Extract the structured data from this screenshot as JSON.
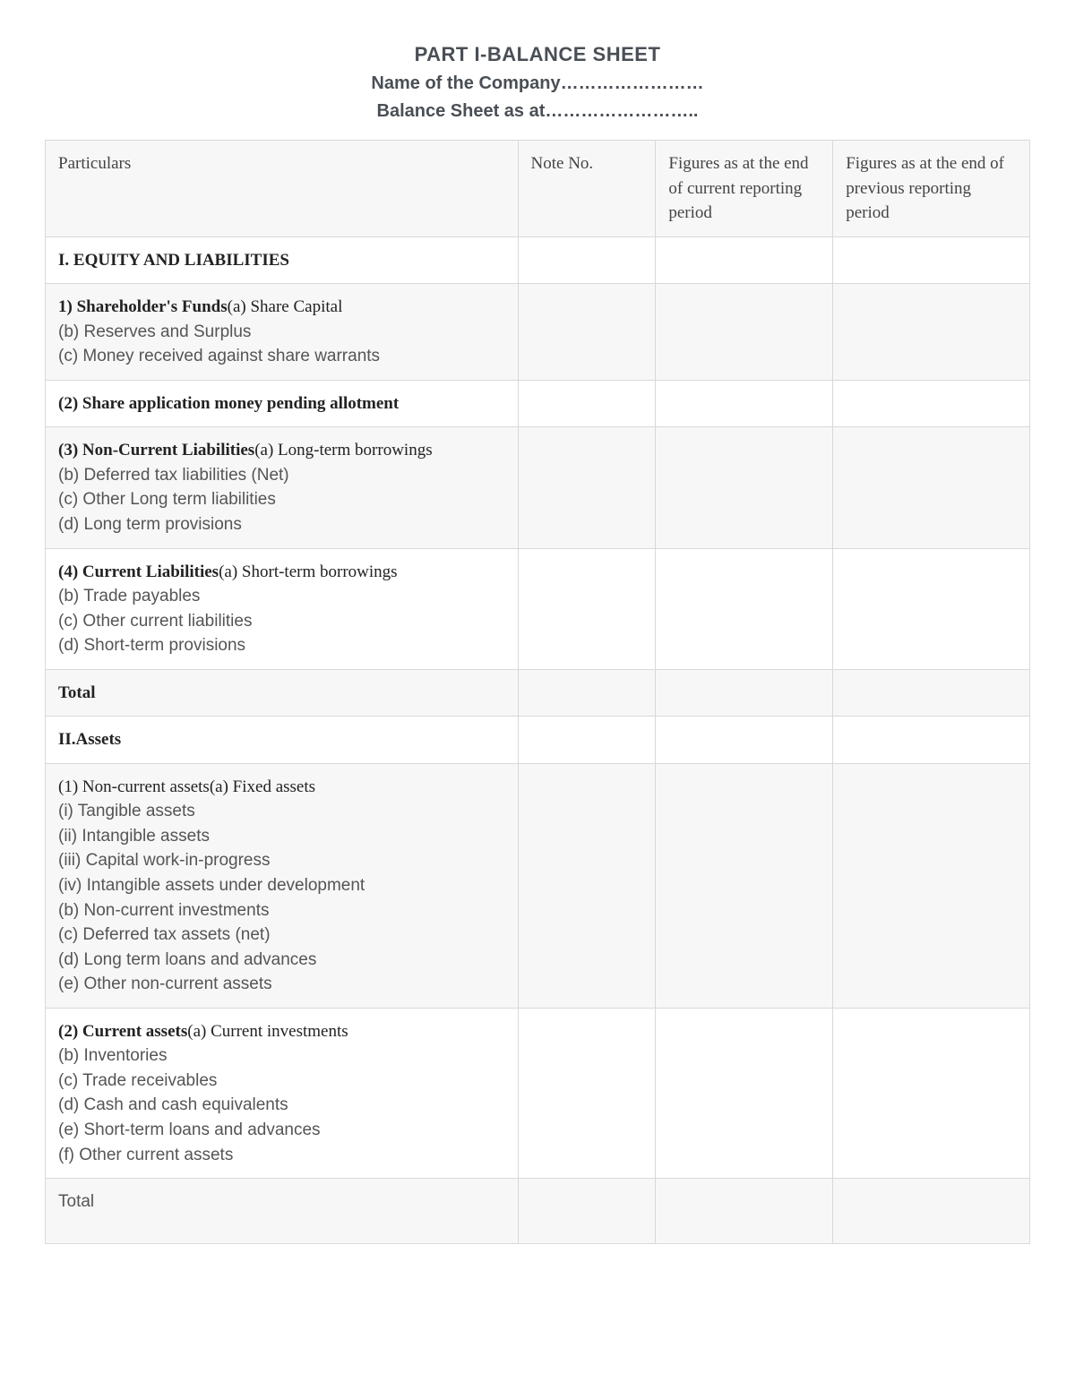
{
  "title": "PART I-BALANCE SHEET",
  "subtitle1": "Name of the Company……………………",
  "subtitle2": "Balance Sheet as at……………………..",
  "columns": {
    "col1": "Particulars",
    "col2": "Note No.",
    "col3": "Figures as at the end of current reporting period",
    "col4": "Figures as at the end of previous reporting period"
  },
  "rows": [
    {
      "shade": false,
      "lines": [
        {
          "text": "I. EQUITY AND LIABILITIES",
          "style": "serif bold"
        }
      ]
    },
    {
      "shade": true,
      "lines": [
        {
          "lead": "1) Shareholder's Funds",
          "leadStyle": "serif bold",
          "text": "(a) Share Capital",
          "style": "serif"
        },
        {
          "text": "(b) Reserves and Surplus",
          "style": "sans"
        },
        {
          "text": "(c) Money received against share warrants",
          "style": "sans"
        }
      ]
    },
    {
      "shade": false,
      "lines": [
        {
          "text": "(2) Share application money pending allotment",
          "style": "serif bold"
        }
      ]
    },
    {
      "shade": true,
      "lines": [
        {
          "lead": "(3) Non-Current Liabilities",
          "leadStyle": "serif bold",
          "text": "(a) Long-term borrowings",
          "style": "serif"
        },
        {
          "text": "(b) Deferred tax liabilities (Net)",
          "style": "sans"
        },
        {
          "text": "(c) Other Long term liabilities",
          "style": "sans"
        },
        {
          "text": "(d) Long term provisions",
          "style": "sans"
        }
      ]
    },
    {
      "shade": false,
      "lines": [
        {
          "lead": "(4) Current Liabilities",
          "leadStyle": "serif bold",
          "text": "(a) Short-term borrowings",
          "style": "serif"
        },
        {
          "text": "(b) Trade payables",
          "style": "sans"
        },
        {
          "text": "(c) Other current liabilities",
          "style": "sans"
        },
        {
          "text": "(d) Short-term provisions",
          "style": "sans"
        }
      ]
    },
    {
      "shade": true,
      "lines": [
        {
          "text": "Total",
          "style": "serif bold"
        }
      ]
    },
    {
      "shade": false,
      "lines": [
        {
          "text": "II.Assets",
          "style": "serif bold"
        }
      ]
    },
    {
      "shade": true,
      "lines": [
        {
          "text": "(1) Non-current assets(a) Fixed assets",
          "style": "serif"
        },
        {
          "text": "(i) Tangible assets",
          "style": "sans"
        },
        {
          "text": "(ii) Intangible assets",
          "style": "sans"
        },
        {
          "text": "(iii) Capital work-in-progress",
          "style": "sans"
        },
        {
          "text": "(iv) Intangible assets under development",
          "style": "sans"
        },
        {
          "text": "(b) Non-current investments",
          "style": "sans"
        },
        {
          "text": "(c) Deferred tax assets (net)",
          "style": "sans"
        },
        {
          "text": "(d) Long term loans and advances",
          "style": "sans"
        },
        {
          "text": "(e) Other non-current assets",
          "style": "sans"
        }
      ]
    },
    {
      "shade": false,
      "lines": [
        {
          "lead": "(2) Current assets",
          "leadStyle": "serif bold",
          "text": "(a) Current investments",
          "style": "serif"
        },
        {
          "text": "(b) Inventories",
          "style": "sans"
        },
        {
          "text": "(c) Trade receivables",
          "style": "sans"
        },
        {
          "text": "(d) Cash and cash equivalents",
          "style": "sans"
        },
        {
          "text": "(e) Short-term loans and advances",
          "style": "sans"
        },
        {
          "text": "(f) Other current assets",
          "style": "sans"
        }
      ]
    },
    {
      "shade": true,
      "last": true,
      "lines": [
        {
          "text": "Total",
          "style": "sans"
        }
      ]
    }
  ],
  "style": {
    "headerBg": "#f7f7f7",
    "borderColor": "#d9d9d9",
    "pageBg": "#ffffff",
    "headingColor": "#4a4f55",
    "serifColor": "#222222",
    "sansColor": "#555555",
    "bodyFontSize": 19,
    "headingFontSize": 22,
    "subheadingFontSize": 20,
    "columnWidths": [
      "48%",
      "14%",
      "18%",
      "20%"
    ]
  }
}
